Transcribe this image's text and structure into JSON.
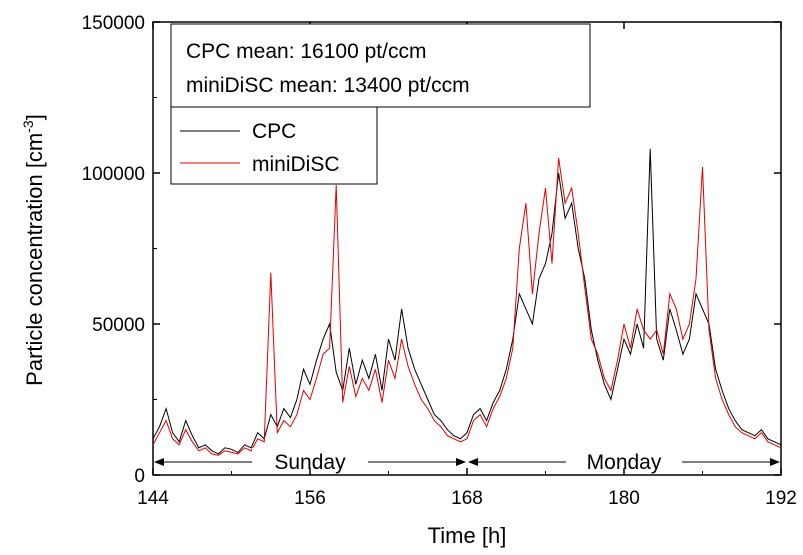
{
  "chart_data": {
    "type": "line",
    "xlabel": "Time [h]",
    "ylabel": "Particle concentration [cm",
    "ylabel_sup": "-3",
    "ylabel_close": "]",
    "xlim": [
      144,
      192
    ],
    "ylim": [
      0,
      150000
    ],
    "xticks": [
      144,
      156,
      168,
      180,
      192
    ],
    "yticks": [
      0,
      50000,
      100000,
      150000
    ],
    "grid": false,
    "legend_position": "top-left",
    "annotations": {
      "box_line1": "CPC mean: 16100 pt/ccm",
      "box_line2": "miniDiSC mean: 13400 pt/ccm"
    },
    "periods": [
      {
        "label": "Sunday",
        "start": 144,
        "end": 168
      },
      {
        "label": "Monday",
        "start": 168,
        "end": 192
      }
    ],
    "series": [
      {
        "name": "CPC",
        "color": "#000000",
        "x": [
          144,
          144.5,
          145,
          145.5,
          146,
          146.5,
          147,
          147.5,
          148,
          148.5,
          149,
          149.5,
          150,
          150.5,
          151,
          151.5,
          152,
          152.5,
          153,
          153.5,
          154,
          154.5,
          155,
          155.5,
          156,
          156.5,
          157,
          157.5,
          158,
          158.5,
          159,
          159.5,
          160,
          160.5,
          161,
          161.5,
          162,
          162.5,
          163,
          163.5,
          164,
          164.5,
          165,
          165.5,
          166,
          166.5,
          167,
          167.5,
          168,
          168.5,
          169,
          169.5,
          170,
          170.5,
          171,
          171.5,
          172,
          172.5,
          173,
          173.5,
          174,
          174.5,
          175,
          175.5,
          176,
          176.5,
          177,
          177.5,
          178,
          178.5,
          179,
          179.5,
          180,
          180.5,
          181,
          181.5,
          182,
          182.5,
          183,
          183.5,
          184,
          184.5,
          185,
          185.5,
          186,
          186.5,
          187,
          187.5,
          188,
          188.5,
          189,
          189.5,
          190,
          190.5,
          191,
          191.5,
          192
        ],
        "y": [
          12000,
          16000,
          22000,
          14000,
          11000,
          18000,
          13000,
          9000,
          10000,
          8000,
          7000,
          9000,
          8500,
          7500,
          10000,
          9000,
          14000,
          12000,
          20000,
          16000,
          22000,
          19000,
          25000,
          35000,
          30000,
          38000,
          45000,
          50000,
          34000,
          28000,
          42000,
          30000,
          38000,
          32000,
          40000,
          28000,
          45000,
          38000,
          55000,
          42000,
          35000,
          30000,
          25000,
          20000,
          18000,
          15000,
          13000,
          12000,
          14000,
          20000,
          22000,
          18000,
          24000,
          28000,
          35000,
          45000,
          60000,
          55000,
          50000,
          65000,
          70000,
          80000,
          100000,
          85000,
          90000,
          75000,
          65000,
          48000,
          38000,
          30000,
          25000,
          35000,
          45000,
          40000,
          50000,
          42000,
          108000,
          45000,
          38000,
          55000,
          48000,
          40000,
          45000,
          60000,
          55000,
          50000,
          35000,
          28000,
          22000,
          18000,
          15000,
          14000,
          13000,
          15000,
          12000,
          11000,
          10000
        ]
      },
      {
        "name": "miniDiSC",
        "color": "#e00000",
        "x": [
          144,
          144.5,
          145,
          145.5,
          146,
          146.5,
          147,
          147.5,
          148,
          148.5,
          149,
          149.5,
          150,
          150.5,
          151,
          151.5,
          152,
          152.5,
          153,
          153.5,
          154,
          154.5,
          155,
          155.5,
          156,
          156.5,
          157,
          157.5,
          158,
          158.5,
          159,
          159.5,
          160,
          160.5,
          161,
          161.5,
          162,
          162.5,
          163,
          163.5,
          164,
          164.5,
          165,
          165.5,
          166,
          166.5,
          167,
          167.5,
          168,
          168.5,
          169,
          169.5,
          170,
          170.5,
          171,
          171.5,
          172,
          172.5,
          173,
          173.5,
          174,
          174.5,
          175,
          175.5,
          176,
          176.5,
          177,
          177.5,
          178,
          178.5,
          179,
          179.5,
          180,
          180.5,
          181,
          181.5,
          182,
          182.5,
          183,
          183.5,
          184,
          184.5,
          185,
          185.5,
          186,
          186.5,
          187,
          187.5,
          188,
          188.5,
          189,
          189.5,
          190,
          190.5,
          191,
          191.5,
          192
        ],
        "y": [
          10000,
          14000,
          18000,
          12000,
          10000,
          15000,
          11000,
          8000,
          9000,
          7000,
          6500,
          8000,
          7500,
          7000,
          9000,
          8000,
          12000,
          11000,
          67000,
          14000,
          18000,
          16000,
          20000,
          28000,
          25000,
          32000,
          40000,
          42000,
          96000,
          24000,
          36000,
          26000,
          32000,
          28000,
          35000,
          24000,
          38000,
          32000,
          45000,
          36000,
          30000,
          25000,
          22000,
          18000,
          16000,
          13000,
          12000,
          11000,
          12000,
          18000,
          20000,
          16000,
          22000,
          26000,
          32000,
          42000,
          75000,
          90000,
          60000,
          80000,
          95000,
          70000,
          105000,
          90000,
          95000,
          80000,
          62000,
          45000,
          40000,
          32000,
          28000,
          38000,
          50000,
          42000,
          55000,
          48000,
          45000,
          48000,
          40000,
          60000,
          55000,
          45000,
          50000,
          65000,
          102000,
          48000,
          32000,
          25000,
          20000,
          16000,
          14000,
          13000,
          12000,
          14000,
          11000,
          10000,
          9000
        ]
      }
    ]
  }
}
